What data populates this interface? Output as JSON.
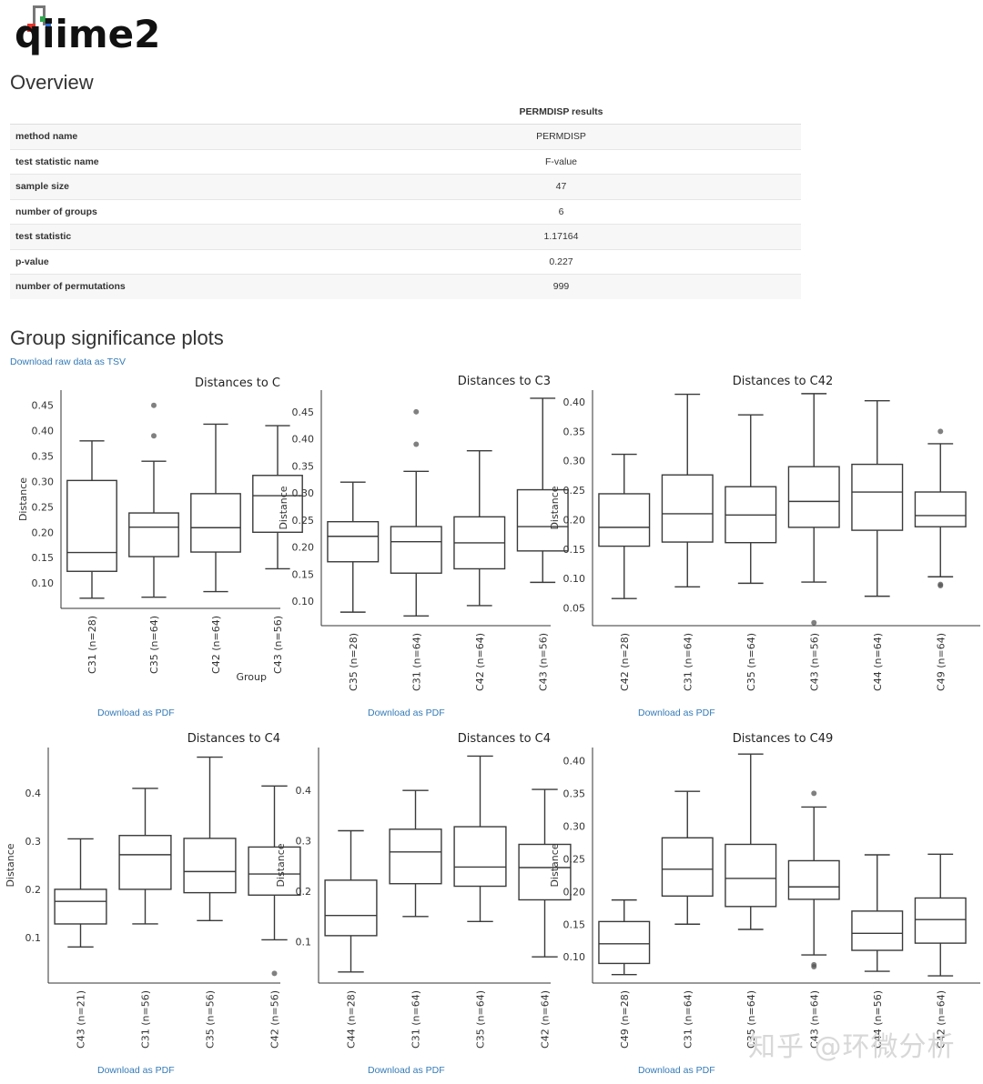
{
  "logo_text": "qiime2",
  "overview": {
    "heading": "Overview",
    "column_header": "PERMDISP results",
    "rows": [
      {
        "key": "method name",
        "value": "PERMDISP"
      },
      {
        "key": "test statistic name",
        "value": "F-value"
      },
      {
        "key": "sample size",
        "value": "47"
      },
      {
        "key": "number of groups",
        "value": "6"
      },
      {
        "key": "test statistic",
        "value": "1.17164"
      },
      {
        "key": "p-value",
        "value": "0.227"
      },
      {
        "key": "number of permutations",
        "value": "999"
      }
    ]
  },
  "plots_section": {
    "heading": "Group significance plots",
    "download_tsv": "Download raw data as TSV",
    "download_pdf": "Download as PDF"
  },
  "watermark": "知乎 @环微分析",
  "chart_data": [
    {
      "type": "box",
      "title": "Distances to C",
      "ylabel": "Distance",
      "xlabel": "Group",
      "ylim": [
        0.05,
        0.48
      ],
      "yticks": [
        0.1,
        0.15,
        0.2,
        0.25,
        0.3,
        0.35,
        0.4,
        0.45
      ],
      "categories": [
        "C31 (n=28)",
        "C35 (n=64)",
        "C42 (n=64)",
        "C43 (n=56)"
      ],
      "boxes": [
        {
          "min": 0.07,
          "q1": 0.123,
          "median": 0.16,
          "q3": 0.302,
          "max": 0.38,
          "outliers": []
        },
        {
          "min": 0.072,
          "q1": 0.152,
          "median": 0.21,
          "q3": 0.238,
          "max": 0.34,
          "outliers": [
            0.39,
            0.45
          ]
        },
        {
          "min": 0.083,
          "q1": 0.161,
          "median": 0.209,
          "q3": 0.276,
          "max": 0.413,
          "outliers": []
        },
        {
          "min": 0.128,
          "q1": 0.2,
          "median": 0.272,
          "q3": 0.312,
          "max": 0.41,
          "outliers": []
        }
      ]
    },
    {
      "type": "box",
      "title": "Distances to C3",
      "ylabel": "Distance",
      "xlabel": "",
      "ylim": [
        0.055,
        0.49
      ],
      "yticks": [
        0.1,
        0.15,
        0.2,
        0.25,
        0.3,
        0.35,
        0.4,
        0.45
      ],
      "categories": [
        "C35 (n=28)",
        "C31 (n=64)",
        "C42 (n=64)",
        "C43 (n=56)"
      ],
      "boxes": [
        {
          "min": 0.08,
          "q1": 0.173,
          "median": 0.22,
          "q3": 0.247,
          "max": 0.32,
          "outliers": []
        },
        {
          "min": 0.073,
          "q1": 0.152,
          "median": 0.21,
          "q3": 0.238,
          "max": 0.34,
          "outliers": [
            0.39,
            0.45
          ]
        },
        {
          "min": 0.092,
          "q1": 0.16,
          "median": 0.208,
          "q3": 0.256,
          "max": 0.378,
          "outliers": []
        },
        {
          "min": 0.135,
          "q1": 0.193,
          "median": 0.238,
          "q3": 0.306,
          "max": 0.475,
          "outliers": []
        }
      ]
    },
    {
      "type": "box",
      "title": "Distances to C42",
      "ylabel": "Distance",
      "xlabel": "",
      "ylim": [
        0.02,
        0.42
      ],
      "yticks": [
        0.05,
        0.1,
        0.15,
        0.2,
        0.25,
        0.3,
        0.35,
        0.4
      ],
      "categories": [
        "C42 (n=28)",
        "C31 (n=64)",
        "C35 (n=64)",
        "C43 (n=56)",
        "C44 (n=64)",
        "C49 (n=64)"
      ],
      "boxes": [
        {
          "min": 0.066,
          "q1": 0.155,
          "median": 0.187,
          "q3": 0.244,
          "max": 0.311,
          "outliers": []
        },
        {
          "min": 0.086,
          "q1": 0.162,
          "median": 0.21,
          "q3": 0.276,
          "max": 0.413,
          "outliers": []
        },
        {
          "min": 0.092,
          "q1": 0.161,
          "median": 0.208,
          "q3": 0.256,
          "max": 0.378,
          "outliers": []
        },
        {
          "min": 0.094,
          "q1": 0.187,
          "median": 0.231,
          "q3": 0.29,
          "max": 0.414,
          "outliers": [
            0.025
          ]
        },
        {
          "min": 0.07,
          "q1": 0.182,
          "median": 0.247,
          "q3": 0.294,
          "max": 0.402,
          "outliers": []
        },
        {
          "min": 0.103,
          "q1": 0.188,
          "median": 0.207,
          "q3": 0.247,
          "max": 0.329,
          "outliers": [
            0.35,
            0.088,
            0.09
          ]
        }
      ]
    },
    {
      "type": "box",
      "title": "Distances to C4",
      "ylabel": "Distance",
      "xlabel": "",
      "ylim": [
        0.005,
        0.495
      ],
      "yticks": [
        0.1,
        0.2,
        0.3,
        0.4
      ],
      "categories": [
        "C43 (n=21)",
        "C31 (n=56)",
        "C35 (n=56)",
        "C42 (n=56)"
      ],
      "boxes": [
        {
          "min": 0.08,
          "q1": 0.128,
          "median": 0.175,
          "q3": 0.2,
          "max": 0.305,
          "outliers": []
        },
        {
          "min": 0.128,
          "q1": 0.2,
          "median": 0.272,
          "q3": 0.312,
          "max": 0.41,
          "outliers": []
        },
        {
          "min": 0.135,
          "q1": 0.193,
          "median": 0.237,
          "q3": 0.306,
          "max": 0.475,
          "outliers": []
        },
        {
          "min": 0.095,
          "q1": 0.188,
          "median": 0.232,
          "q3": 0.288,
          "max": 0.415,
          "outliers": [
            0.025
          ]
        }
      ]
    },
    {
      "type": "box",
      "title": "Distances to C4",
      "ylabel": "Distance",
      "xlabel": "",
      "ylim": [
        0.018,
        0.485
      ],
      "yticks": [
        0.1,
        0.2,
        0.3,
        0.4
      ],
      "categories": [
        "C44 (n=28)",
        "C31 (n=64)",
        "C35 (n=64)",
        "C42 (n=64)"
      ],
      "boxes": [
        {
          "min": 0.04,
          "q1": 0.112,
          "median": 0.152,
          "q3": 0.222,
          "max": 0.32,
          "outliers": []
        },
        {
          "min": 0.15,
          "q1": 0.215,
          "median": 0.278,
          "q3": 0.323,
          "max": 0.4,
          "outliers": []
        },
        {
          "min": 0.14,
          "q1": 0.21,
          "median": 0.248,
          "q3": 0.328,
          "max": 0.468,
          "outliers": []
        },
        {
          "min": 0.07,
          "q1": 0.183,
          "median": 0.247,
          "q3": 0.293,
          "max": 0.402,
          "outliers": []
        }
      ]
    },
    {
      "type": "box",
      "title": "Distances to C49",
      "ylabel": "Distance",
      "xlabel": "",
      "ylim": [
        0.06,
        0.42
      ],
      "yticks": [
        0.1,
        0.15,
        0.2,
        0.25,
        0.3,
        0.35,
        0.4
      ],
      "categories": [
        "C49 (n=28)",
        "C31 (n=64)",
        "C35 (n=64)",
        "C43 (n=64)",
        "C44 (n=56)",
        "C42 (n=64)"
      ],
      "boxes": [
        {
          "min": 0.073,
          "q1": 0.09,
          "median": 0.12,
          "q3": 0.154,
          "max": 0.187,
          "outliers": []
        },
        {
          "min": 0.15,
          "q1": 0.193,
          "median": 0.234,
          "q3": 0.282,
          "max": 0.353,
          "outliers": []
        },
        {
          "min": 0.142,
          "q1": 0.177,
          "median": 0.22,
          "q3": 0.272,
          "max": 0.41,
          "outliers": []
        },
        {
          "min": 0.103,
          "q1": 0.188,
          "median": 0.207,
          "q3": 0.247,
          "max": 0.329,
          "outliers": [
            0.35,
            0.088,
            0.085
          ]
        },
        {
          "min": 0.078,
          "q1": 0.11,
          "median": 0.136,
          "q3": 0.17,
          "max": 0.256,
          "outliers": []
        },
        {
          "min": 0.071,
          "q1": 0.121,
          "median": 0.157,
          "q3": 0.19,
          "max": 0.257,
          "outliers": []
        }
      ]
    }
  ]
}
